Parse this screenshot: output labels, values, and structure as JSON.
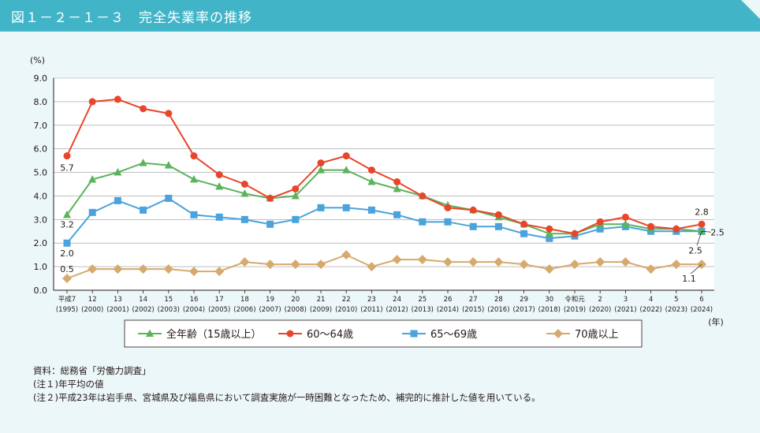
{
  "figure": {
    "number": "図１－２－１－３",
    "title": "完全失業率の推移",
    "title_bar_color": "#42b4c8"
  },
  "chart_data": {
    "type": "line",
    "title": "完全失業率の推移",
    "ylabel": "(%)",
    "xlabel": "(年)",
    "ylim": [
      0,
      9
    ],
    "yticks": [
      "0.0",
      "1.0",
      "2.0",
      "3.0",
      "4.0",
      "5.0",
      "6.0",
      "7.0",
      "8.0",
      "9.0"
    ],
    "grid": true,
    "categories": [
      "平成7",
      "12",
      "13",
      "14",
      "15",
      "16",
      "17",
      "18",
      "19",
      "20",
      "21",
      "22",
      "23",
      "24",
      "25",
      "26",
      "27",
      "28",
      "29",
      "30",
      "令和元",
      "2",
      "3",
      "4",
      "5",
      "6"
    ],
    "categories_sub": [
      "(1995)",
      "(2000)",
      "(2001)",
      "(2002)",
      "(2003)",
      "(2004)",
      "(2005)",
      "(2006)",
      "(2007)",
      "(2008)",
      "(2009)",
      "(2010)",
      "(2011)",
      "(2012)",
      "(2013)",
      "(2014)",
      "(2015)",
      "(2016)",
      "(2017)",
      "(2018)",
      "(2019)",
      "(2020)",
      "(2021)",
      "(2022)",
      "(2023)",
      "(2024)"
    ],
    "series": [
      {
        "name": "全年齢（15歳以上）",
        "color": "#5bb35b",
        "marker": "triangle",
        "values": [
          3.2,
          4.7,
          5.0,
          5.4,
          5.3,
          4.7,
          4.4,
          4.1,
          3.9,
          4.0,
          5.1,
          5.1,
          4.6,
          4.3,
          4.0,
          3.6,
          3.4,
          3.1,
          2.8,
          2.4,
          2.4,
          2.8,
          2.8,
          2.6,
          2.6,
          2.5
        ]
      },
      {
        "name": "60～64歳",
        "color": "#e8462a",
        "marker": "circle",
        "values": [
          5.7,
          8.0,
          8.1,
          7.7,
          7.5,
          5.7,
          4.9,
          4.5,
          3.9,
          4.3,
          5.4,
          5.7,
          5.1,
          4.6,
          4.0,
          3.5,
          3.4,
          3.2,
          2.8,
          2.6,
          2.4,
          2.9,
          3.1,
          2.7,
          2.6,
          2.8
        ]
      },
      {
        "name": "65～69歳",
        "color": "#4aa3dc",
        "marker": "square",
        "values": [
          2.0,
          3.3,
          3.8,
          3.4,
          3.9,
          3.2,
          3.1,
          3.0,
          2.8,
          3.0,
          3.5,
          3.5,
          3.4,
          3.2,
          2.9,
          2.9,
          2.7,
          2.7,
          2.4,
          2.2,
          2.3,
          2.6,
          2.7,
          2.5,
          2.5,
          2.5
        ]
      },
      {
        "name": "70歳以上",
        "color": "#d6aa6c",
        "marker": "diamond",
        "values": [
          0.5,
          0.9,
          0.9,
          0.9,
          0.9,
          0.8,
          0.8,
          1.2,
          1.1,
          1.1,
          1.1,
          1.5,
          1.0,
          1.3,
          1.3,
          1.2,
          1.2,
          1.2,
          1.1,
          0.9,
          1.1,
          1.2,
          1.2,
          0.9,
          1.1,
          1.1
        ]
      }
    ],
    "annotations": [
      {
        "text": "5.7",
        "series": 1,
        "index": 0
      },
      {
        "text": "3.2",
        "series": 0,
        "index": 0
      },
      {
        "text": "2.0",
        "series": 2,
        "index": 0
      },
      {
        "text": "0.5",
        "series": 3,
        "index": 0
      },
      {
        "text": "2.8",
        "series": 1,
        "index": 25
      },
      {
        "text": "2.5",
        "series": 0,
        "index": 25
      },
      {
        "text": "2.5",
        "series": 2,
        "index": 25
      },
      {
        "text": "1.1",
        "series": 3,
        "index": 25
      }
    ]
  },
  "notes": {
    "source": "資料：総務省「労働力調査」",
    "note1": "(注１)年平均の値",
    "note2": "(注２)平成23年は岩手県、宮城県及び福島県において調査実施が一時困難となったため、補完的に推計した値を用いている。"
  }
}
